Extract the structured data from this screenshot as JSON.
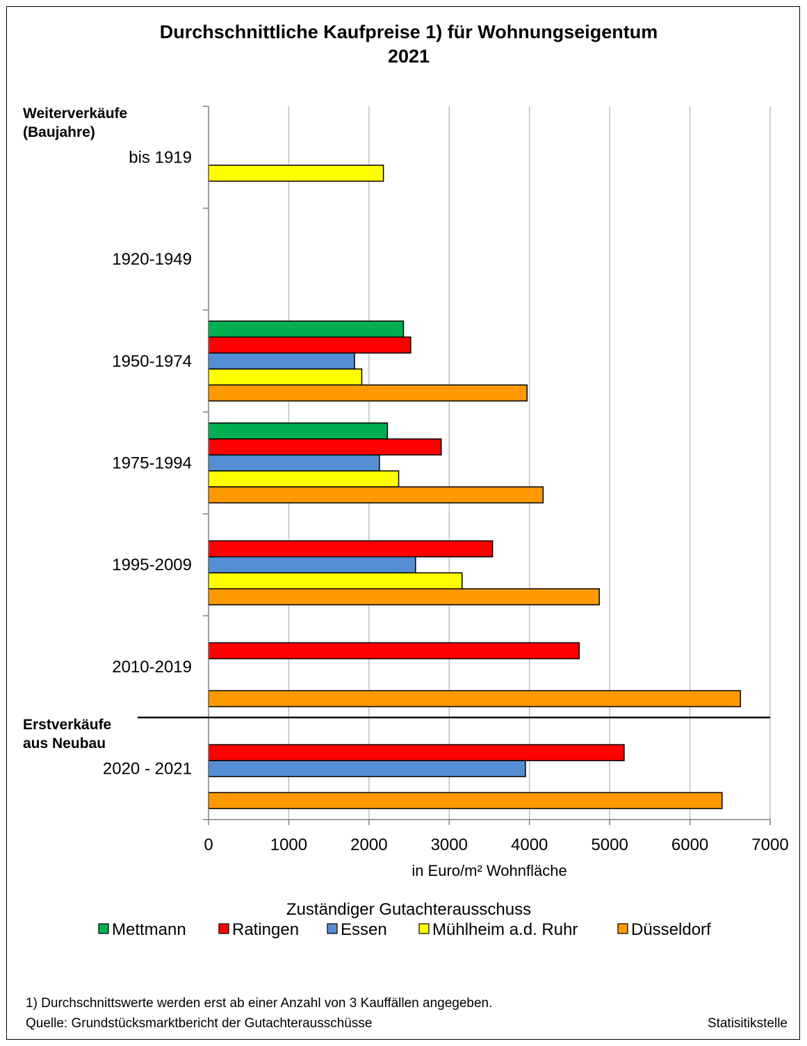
{
  "chart_data": {
    "type": "bar",
    "orientation": "horizontal",
    "title": "Durchschnittliche Kaufpreise 1) für Wohnungseigentum",
    "subtitle": "2021",
    "xlabel": "in Euro/m² Wohnfläche",
    "xlim": [
      0,
      7000
    ],
    "xticks": [
      0,
      1000,
      2000,
      3000,
      4000,
      5000,
      6000,
      7000
    ],
    "grid": true,
    "section_labels": [
      "Weiterverkäufe\n(Baujahre)",
      "Erstverkäufe\naus Neubau"
    ],
    "categories": [
      "bis 1919",
      "1920-1949",
      "1950-1974",
      "1975-1994",
      "1995-2009",
      "2010-2019",
      "2020 - 2021"
    ],
    "legend_title": "Zuständiger Gutachterausschuss",
    "legend_position": "bottom",
    "series": [
      {
        "name": "Mettmann",
        "color": "#00B050",
        "values": [
          null,
          null,
          2430,
          2230,
          null,
          null,
          null
        ]
      },
      {
        "name": "Ratingen",
        "color": "#FF0000",
        "values": [
          null,
          null,
          2520,
          2900,
          3540,
          4620,
          5180
        ]
      },
      {
        "name": "Essen",
        "color": "#558ED5",
        "values": [
          null,
          null,
          1820,
          2130,
          2580,
          null,
          3950
        ]
      },
      {
        "name": "Mühlheim a.d. Ruhr",
        "color": "#FFFF00",
        "values": [
          2180,
          null,
          1910,
          2370,
          3160,
          null,
          null
        ]
      },
      {
        "name": "Düsseldorf",
        "color": "#FF9900",
        "values": [
          null,
          null,
          3970,
          4170,
          4870,
          6630,
          6400
        ]
      }
    ]
  },
  "footnote": "1) Durchschnittswerte werden erst ab einer Anzahl von 3 Kauffällen angegeben.",
  "source": "Quelle: Grundstücksmarktbericht der Gutachterausschüsse",
  "credit": "Statisitikstelle"
}
